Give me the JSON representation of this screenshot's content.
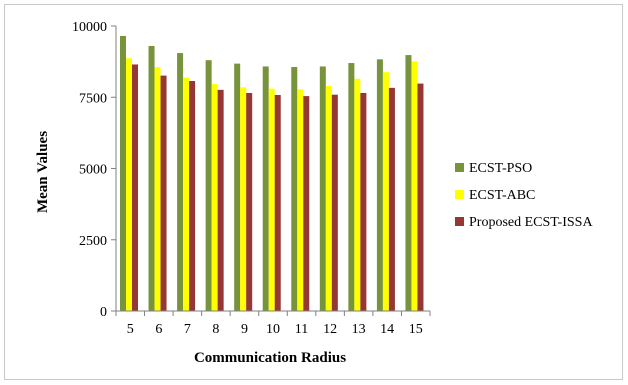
{
  "chart_data": {
    "type": "bar",
    "title": "",
    "xlabel": "Communication Radius",
    "ylabel": "Mean Values",
    "categories": [
      "5",
      "6",
      "7",
      "8",
      "9",
      "10",
      "11",
      "12",
      "13",
      "14",
      "15"
    ],
    "ylim": [
      0,
      10000
    ],
    "yticks": [
      0,
      2500,
      5000,
      7500,
      10000
    ],
    "grid": false,
    "legend_position": "right",
    "series": [
      {
        "name": "ECST-PSO",
        "color": "#77933c",
        "values": [
          9650,
          9300,
          9050,
          8800,
          8680,
          8580,
          8560,
          8580,
          8700,
          8830,
          8980
        ]
      },
      {
        "name": "ECST-ABC",
        "color": "#ffff00",
        "values": [
          8870,
          8560,
          8190,
          7960,
          7850,
          7800,
          7780,
          7900,
          8150,
          8380,
          8760
        ]
      },
      {
        "name": "Proposed ECST-ISSA",
        "color": "#953735",
        "values": [
          8650,
          8260,
          8070,
          7760,
          7650,
          7580,
          7540,
          7590,
          7650,
          7830,
          7980
        ]
      }
    ]
  }
}
